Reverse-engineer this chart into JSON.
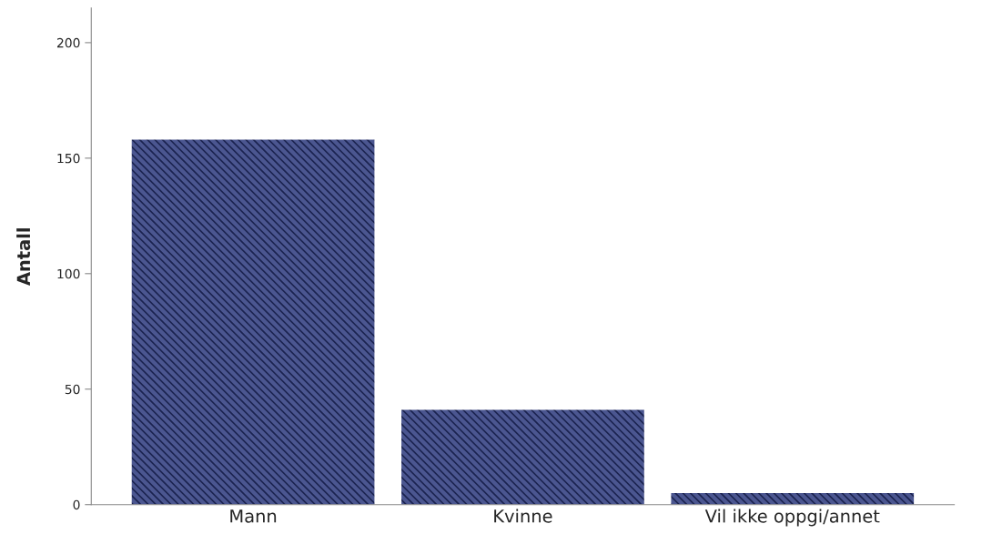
{
  "chart_data": {
    "type": "bar",
    "ylabel": "Antall",
    "categories": [
      "Mann",
      "Kvinne",
      "Vil ikke oppgi/annet"
    ],
    "values": [
      158,
      41,
      5
    ],
    "color": "#4b5690",
    "ylim": [
      0,
      215
    ],
    "yticks": [
      0,
      50,
      100,
      150,
      200
    ],
    "grid": false
  }
}
